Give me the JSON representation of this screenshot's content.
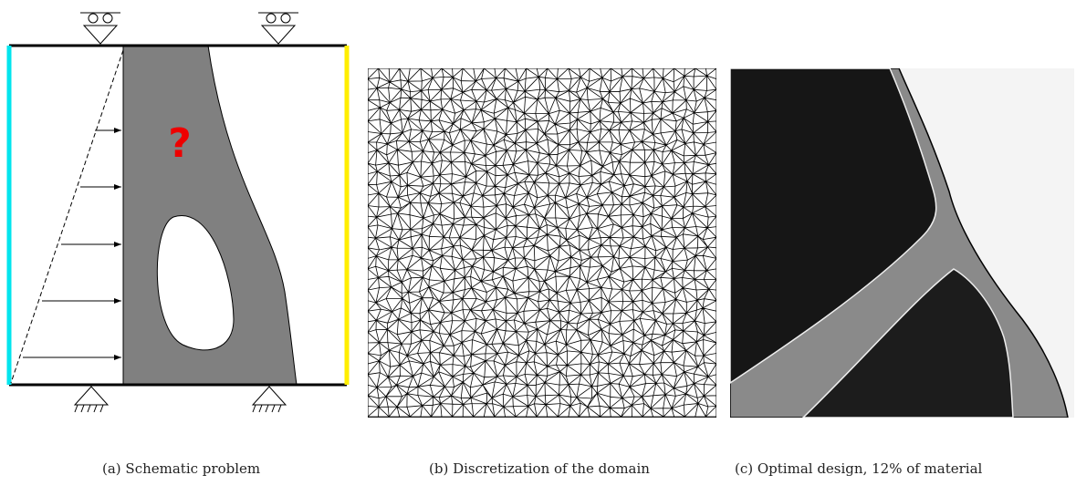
{
  "panels": [
    {
      "caption": "(a) Schematic problem",
      "mark": "?"
    },
    {
      "caption": "(b) Discretization of the domain"
    },
    {
      "caption": "(c) Optimal design, 12% of material"
    }
  ]
}
